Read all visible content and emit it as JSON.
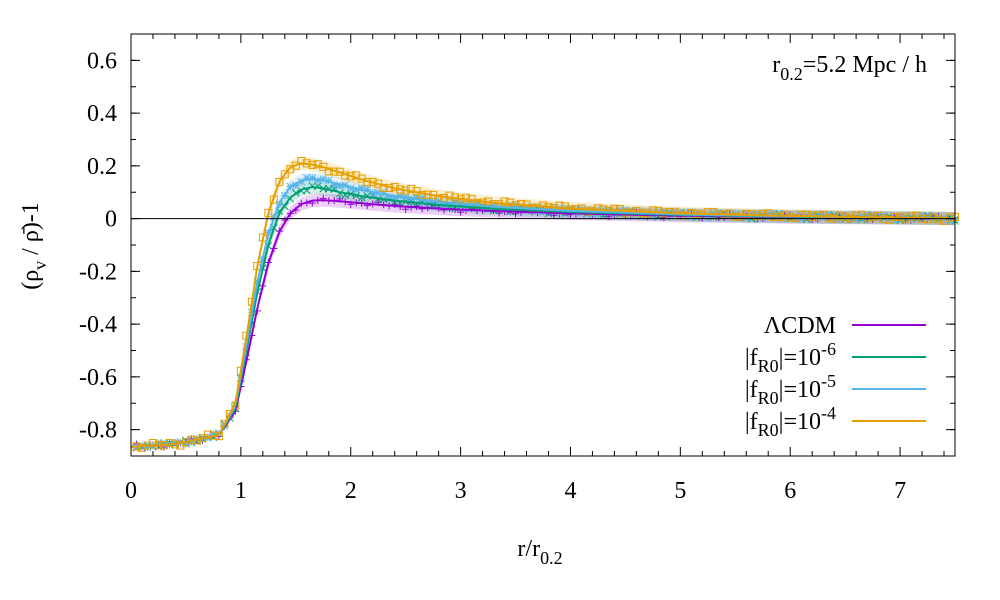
{
  "chart_data": {
    "type": "line",
    "title": "",
    "xlabel": "r/r",
    "xlabel_sub": "0.2",
    "ylabel_main": "(ρ",
    "ylabel_sub": "v",
    "ylabel_rest": " / ρ̄)-1",
    "annotation_main": "r",
    "annotation_sub": "0.2",
    "annotation_rest": "=5.2 Mpc / h",
    "xlim": [
      0,
      7.5
    ],
    "ylim": [
      -0.9,
      0.7
    ],
    "xticks": [
      0,
      1,
      2,
      3,
      4,
      5,
      6,
      7
    ],
    "xtick_labels": [
      "0",
      "1",
      "2",
      "3",
      "4",
      "5",
      "6",
      "7"
    ],
    "yticks": [
      -0.8,
      -0.6,
      -0.4,
      -0.2,
      0,
      0.2,
      0.4,
      0.6
    ],
    "ytick_labels": [
      "-0.8",
      "-0.6",
      "-0.4",
      "-0.2",
      "0",
      "0.2",
      "0.4",
      "0.6"
    ],
    "reference_line_y": 0,
    "legend_position": "bottom-right",
    "series": [
      {
        "name_main": "ΛCDM",
        "name_sup": "",
        "name_sub": "",
        "name_tail": "",
        "color": "#9400D3",
        "marker": "plus",
        "x": [
          0,
          0.4,
          0.8,
          0.95,
          1.05,
          1.15,
          1.25,
          1.35,
          1.45,
          1.55,
          1.65,
          1.75,
          1.9,
          2.1,
          2.4,
          2.8,
          3.3,
          4,
          5,
          6,
          7,
          7.5
        ],
        "y": [
          -0.865,
          -0.855,
          -0.82,
          -0.73,
          -0.54,
          -0.34,
          -0.17,
          -0.05,
          0.02,
          0.055,
          0.068,
          0.07,
          0.066,
          0.058,
          0.048,
          0.038,
          0.029,
          0.02,
          0.011,
          0.006,
          0.002,
          0.0
        ]
      },
      {
        "name_main": "|f",
        "name_sup": "-6",
        "name_sub": "R0",
        "name_tail": "|=10",
        "color": "#009E73",
        "marker": "x",
        "x": [
          0,
          0.4,
          0.8,
          0.95,
          1.05,
          1.15,
          1.25,
          1.35,
          1.45,
          1.55,
          1.65,
          1.75,
          1.9,
          2.1,
          2.4,
          2.8,
          3.3,
          4,
          5,
          6,
          7,
          7.5
        ],
        "y": [
          -0.865,
          -0.855,
          -0.82,
          -0.72,
          -0.5,
          -0.28,
          -0.1,
          0.02,
          0.08,
          0.11,
          0.12,
          0.115,
          0.1,
          0.085,
          0.068,
          0.052,
          0.038,
          0.025,
          0.014,
          0.007,
          0.003,
          0.0
        ]
      },
      {
        "name_main": "|f",
        "name_sup": "-5",
        "name_sub": "R0",
        "name_tail": "|=10",
        "color": "#56B4E9",
        "marker": "asterisk",
        "x": [
          0,
          0.4,
          0.8,
          0.95,
          1.05,
          1.15,
          1.25,
          1.35,
          1.45,
          1.55,
          1.65,
          1.75,
          1.9,
          2.1,
          2.4,
          2.8,
          3.3,
          4,
          5,
          6,
          7,
          7.5
        ],
        "y": [
          -0.865,
          -0.855,
          -0.82,
          -0.71,
          -0.48,
          -0.24,
          -0.06,
          0.06,
          0.12,
          0.145,
          0.15,
          0.145,
          0.13,
          0.108,
          0.085,
          0.063,
          0.045,
          0.029,
          0.016,
          0.008,
          0.003,
          0.0
        ]
      },
      {
        "name_main": "|f",
        "name_sup": "-4",
        "name_sub": "R0",
        "name_tail": "|=10",
        "color": "#E69F00",
        "marker": "square",
        "x": [
          0,
          0.4,
          0.8,
          0.95,
          1.05,
          1.15,
          1.25,
          1.35,
          1.45,
          1.55,
          1.65,
          1.75,
          1.9,
          2.1,
          2.4,
          2.8,
          3.3,
          4,
          5,
          6,
          7,
          7.5
        ],
        "y": [
          -0.865,
          -0.855,
          -0.82,
          -0.7,
          -0.45,
          -0.18,
          0.02,
          0.14,
          0.195,
          0.21,
          0.205,
          0.195,
          0.175,
          0.148,
          0.115,
          0.085,
          0.06,
          0.038,
          0.02,
          0.01,
          0.004,
          0.0
        ]
      }
    ]
  }
}
